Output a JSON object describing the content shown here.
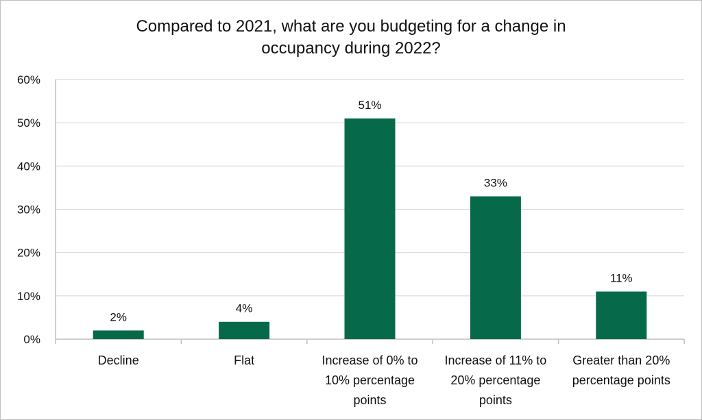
{
  "chart_data": {
    "type": "bar",
    "title_lines": [
      "Compared to 2021, what are you budgeting for a change in",
      "occupancy during 2022?"
    ],
    "categories": [
      [
        "Decline"
      ],
      [
        "Flat"
      ],
      [
        "Increase of 0% to",
        "10% percentage",
        "points"
      ],
      [
        "Increase of 11% to",
        "20% percentage",
        "points"
      ],
      [
        "Greater than 20%",
        "percentage points"
      ]
    ],
    "values": [
      2,
      4,
      51,
      33,
      11
    ],
    "data_labels": [
      "2%",
      "4%",
      "51%",
      "33%",
      "11%"
    ],
    "ylim": [
      0,
      60
    ],
    "yticks": [
      0,
      10,
      20,
      30,
      40,
      50,
      60
    ],
    "ytick_labels": [
      "0%",
      "10%",
      "20%",
      "30%",
      "40%",
      "50%",
      "60%"
    ],
    "xlabel": "",
    "ylabel": "",
    "grid": true,
    "legend": "none",
    "bar_color": "#066a4a",
    "grid_color": "#d9d9d9",
    "axis_color": "#bfbfbf"
  }
}
